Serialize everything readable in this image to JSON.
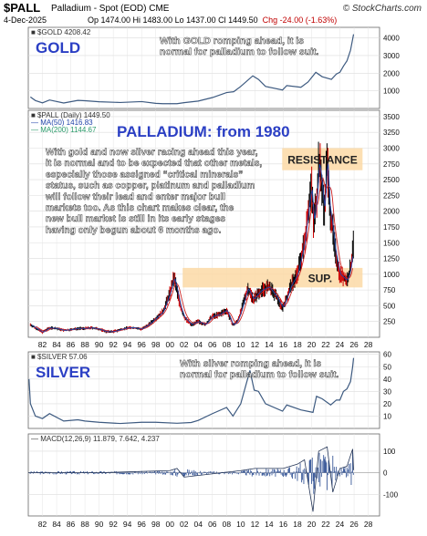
{
  "header": {
    "symbol": "$PALL",
    "subtitle": "Palladium - Spot (EOD)  CME",
    "site": "© StockCharts.com",
    "date": "4-Dec-2025",
    "ohlc": "Op 1474.00  Hi 1483.00  Lo 1437.00  Cl 1449.50",
    "change": "Chg -24.00 (-1.63%)"
  },
  "colors": {
    "price_line": "#3d5a80",
    "ma50": "#2244aa",
    "ma200": "#cc2222",
    "candle_up": "#000000",
    "candle_down": "#cc0000",
    "zone": "#fbd9a6",
    "heading_blue": "#2b3fc4",
    "macd": "#3b5a9a"
  },
  "chart_data": [
    {
      "type": "line",
      "panel": "gold",
      "legend": "$GOLD 4208.42",
      "label": "GOLD",
      "annotation": "With GOLD romping ahead, it is\nnormal for palladium to follow suit.",
      "yticks": [
        1000,
        2000,
        3000,
        4000
      ],
      "ylim": [
        0,
        4600
      ],
      "x": [
        1980.3,
        1981,
        1982,
        1983,
        1985,
        1987,
        1988,
        1990,
        1993,
        1996,
        1998,
        1999,
        2001,
        2002,
        2004,
        2006,
        2008,
        2009,
        2010,
        2011.7,
        2012.5,
        2013.5,
        2015.9,
        2016.5,
        2018.5,
        2019.5,
        2020.6,
        2021.5,
        2022.8,
        2023.5,
        2024,
        2024.5,
        2025,
        2025.5,
        2025.93
      ],
      "values": [
        650,
        450,
        320,
        480,
        310,
        460,
        440,
        380,
        340,
        390,
        290,
        270,
        270,
        330,
        420,
        620,
        900,
        950,
        1250,
        1850,
        1650,
        1250,
        1050,
        1300,
        1200,
        1500,
        2050,
        1800,
        1650,
        1950,
        2050,
        2400,
        2700,
        3300,
        4208
      ]
    },
    {
      "type": "candlestick",
      "panel": "palladium",
      "title": "PALLADIUM: from 1980",
      "legend": [
        "$PALL (Daily) 1449.50",
        "MA(50) 1416.83",
        "MA(200) 1144.67"
      ],
      "annotation": "With gold  and now silver racing ahead this year,\nit is normal and to be expected that other metals,\nespecially those assigned “critical minerals”\nstatus, such as copper, platinum and palladium\nwill follow their lead and enter major bull\nmarkets too. As this chart makes clear, the\nnew bull market is still in its early stages\nhaving only begun about 6 months ago.",
      "zones": [
        {
          "label": "RESISTANCE",
          "from": 2015.85,
          "to": 2027.2,
          "low": 2650,
          "high": 3000
        },
        {
          "label": "SUP.",
          "from": 2001.8,
          "to": 2027.2,
          "low": 790,
          "high": 1100
        }
      ],
      "yticks": [
        250,
        500,
        750,
        1000,
        1250,
        1500,
        1750,
        2000,
        2250,
        2500,
        2750,
        3000,
        3250,
        3500
      ],
      "ylim": [
        0,
        3600
      ],
      "x": [
        1980.3,
        1981,
        1982,
        1983,
        1984,
        1985,
        1986,
        1987,
        1988,
        1989,
        1990,
        1991,
        1992,
        1993,
        1994,
        1995,
        1996,
        1997,
        1998,
        1999,
        2000,
        2000.6,
        2001,
        2001.5,
        2002,
        2003,
        2004,
        2005,
        2006,
        2007,
        2008,
        2008.9,
        2009.5,
        2010,
        2011,
        2011.8,
        2012.5,
        2013,
        2014,
        2015,
        2015.9,
        2016.5,
        2017,
        2018,
        2019,
        2019.5,
        2020,
        2020.3,
        2020.8,
        2021,
        2021.3,
        2021.8,
        2022.2,
        2022.5,
        2022.9,
        2023.3,
        2023.8,
        2024,
        2024.5,
        2025,
        2025.3,
        2025.6,
        2025.8,
        2025.93
      ],
      "values": [
        200,
        150,
        80,
        150,
        140,
        110,
        120,
        140,
        140,
        150,
        130,
        90,
        90,
        120,
        150,
        150,
        130,
        200,
        300,
        400,
        700,
        950,
        750,
        480,
        320,
        200,
        250,
        200,
        330,
        360,
        430,
        190,
        250,
        400,
        780,
        600,
        700,
        750,
        800,
        650,
        470,
        620,
        800,
        1000,
        1500,
        2000,
        2400,
        1800,
        2300,
        2800,
        2600,
        2000,
        2900,
        2100,
        1800,
        1400,
        1100,
        1000,
        950,
        900,
        1000,
        1150,
        1450,
        1449.5
      ],
      "ma50_label": "MA(50) 1416.83",
      "ma200_label": "MA(200) 1144.67"
    },
    {
      "type": "line",
      "panel": "silver",
      "legend": "$SILVER 57.06",
      "label": "SILVER",
      "annotation": "With silver romping ahead, it is\nnormal for palladium to follow suit.",
      "yticks": [
        10,
        20,
        30,
        40,
        50,
        60
      ],
      "ylim": [
        0,
        62
      ],
      "x": [
        1980.1,
        1980.3,
        1981,
        1982,
        1983,
        1985,
        1987,
        1988,
        1990,
        1993,
        1996,
        1998,
        2001,
        2003,
        2004,
        2006,
        2008,
        2008.9,
        2010,
        2011.3,
        2011.9,
        2012.5,
        2013.5,
        2015.9,
        2016.5,
        2018.5,
        2020.2,
        2020.7,
        2021.5,
        2022.7,
        2023.5,
        2024,
        2024.5,
        2025,
        2025.5,
        2025.8,
        2025.93
      ],
      "values": [
        40,
        20,
        10,
        8,
        12,
        6,
        7,
        6,
        5,
        4,
        5,
        5,
        4.2,
        4.8,
        6.5,
        12,
        17,
        10,
        20,
        47,
        31,
        30,
        20,
        14,
        19,
        15,
        13,
        26,
        24,
        19,
        23,
        23,
        30,
        32,
        38,
        50,
        57.06
      ]
    },
    {
      "type": "line",
      "panel": "macd",
      "legend": "MACD(12,26,9) 11.879, 7.642, 4.237",
      "yticks": [
        -100,
        0,
        100
      ],
      "ylim": [
        -200,
        180
      ],
      "x": [
        1980,
        1990,
        2000,
        2001,
        2002,
        2010,
        2012,
        2016,
        2018,
        2019,
        2020.2,
        2021,
        2022.2,
        2023,
        2024,
        2025,
        2025.8,
        2025.93
      ],
      "values": [
        0,
        0,
        10,
        20,
        -20,
        10,
        20,
        20,
        40,
        60,
        -180,
        100,
        120,
        -90,
        20,
        30,
        110,
        11.879
      ],
      "xticks": [
        "82",
        "84",
        "86",
        "88",
        "90",
        "92",
        "94",
        "96",
        "98",
        "00",
        "02",
        "04",
        "06",
        "08",
        "10",
        "12",
        "14",
        "16",
        "18",
        "20",
        "22",
        "24",
        "26",
        "28"
      ]
    }
  ]
}
